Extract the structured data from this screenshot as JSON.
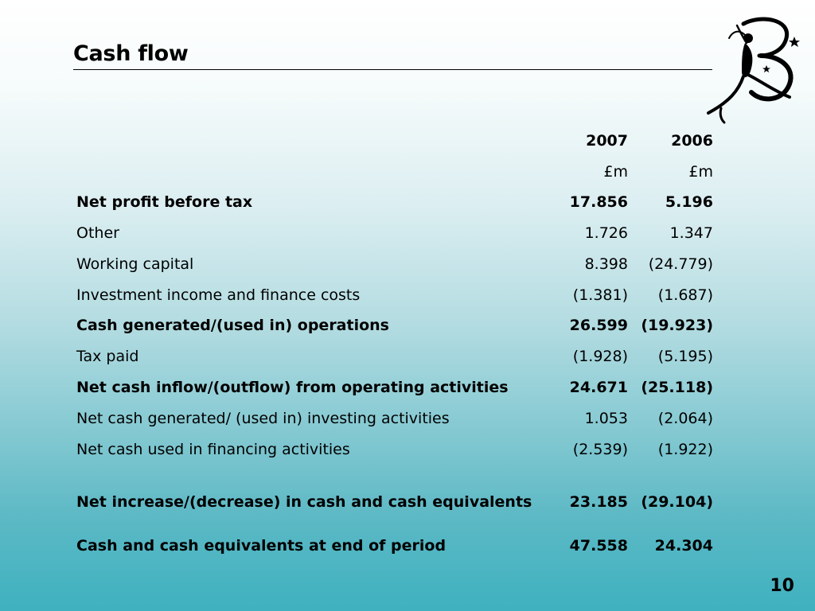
{
  "slide": {
    "title": "Cash flow",
    "page_number": "10",
    "logo_icon": "leaping-figure-b-logo-icon"
  },
  "table": {
    "header_years": [
      "2007",
      "2006"
    ],
    "header_units": [
      "£m",
      "£m"
    ],
    "rows": [
      {
        "label": "Net profit before tax",
        "v2007": "17.856",
        "v2006": "5.196",
        "bold": true
      },
      {
        "label": "Other",
        "v2007": "1.726",
        "v2006": "1.347",
        "bold": false
      },
      {
        "label": "Working capital",
        "v2007": "8.398",
        "v2006": "(24.779)",
        "bold": false
      },
      {
        "label": "Investment income and finance costs",
        "v2007": "(1.381)",
        "v2006": "(1.687)",
        "bold": false
      },
      {
        "label": "Cash generated/(used in) operations",
        "v2007": "26.599",
        "v2006": "(19.923)",
        "bold": true
      },
      {
        "label": "Tax paid",
        "v2007": "(1.928)",
        "v2006": "(5.195)",
        "bold": false
      },
      {
        "label": "Net cash inflow/(outflow) from operating activities",
        "v2007": "24.671",
        "v2006": "(25.118)",
        "bold": true
      },
      {
        "label": "Net cash generated/ (used in) investing activities",
        "v2007": "1.053",
        "v2006": "(2.064)",
        "bold": false
      },
      {
        "label": "Net cash used in financing activities",
        "v2007": "(2.539)",
        "v2006": "(1.922)",
        "bold": false
      },
      {
        "label": "Net increase/(decrease) in cash and cash equivalents",
        "v2007": "23.185",
        "v2006": "(29.104)",
        "bold": true
      },
      {
        "label": "Cash and cash equivalents at end of period",
        "v2007": "47.558",
        "v2006": "24.304",
        "bold": true
      }
    ]
  }
}
